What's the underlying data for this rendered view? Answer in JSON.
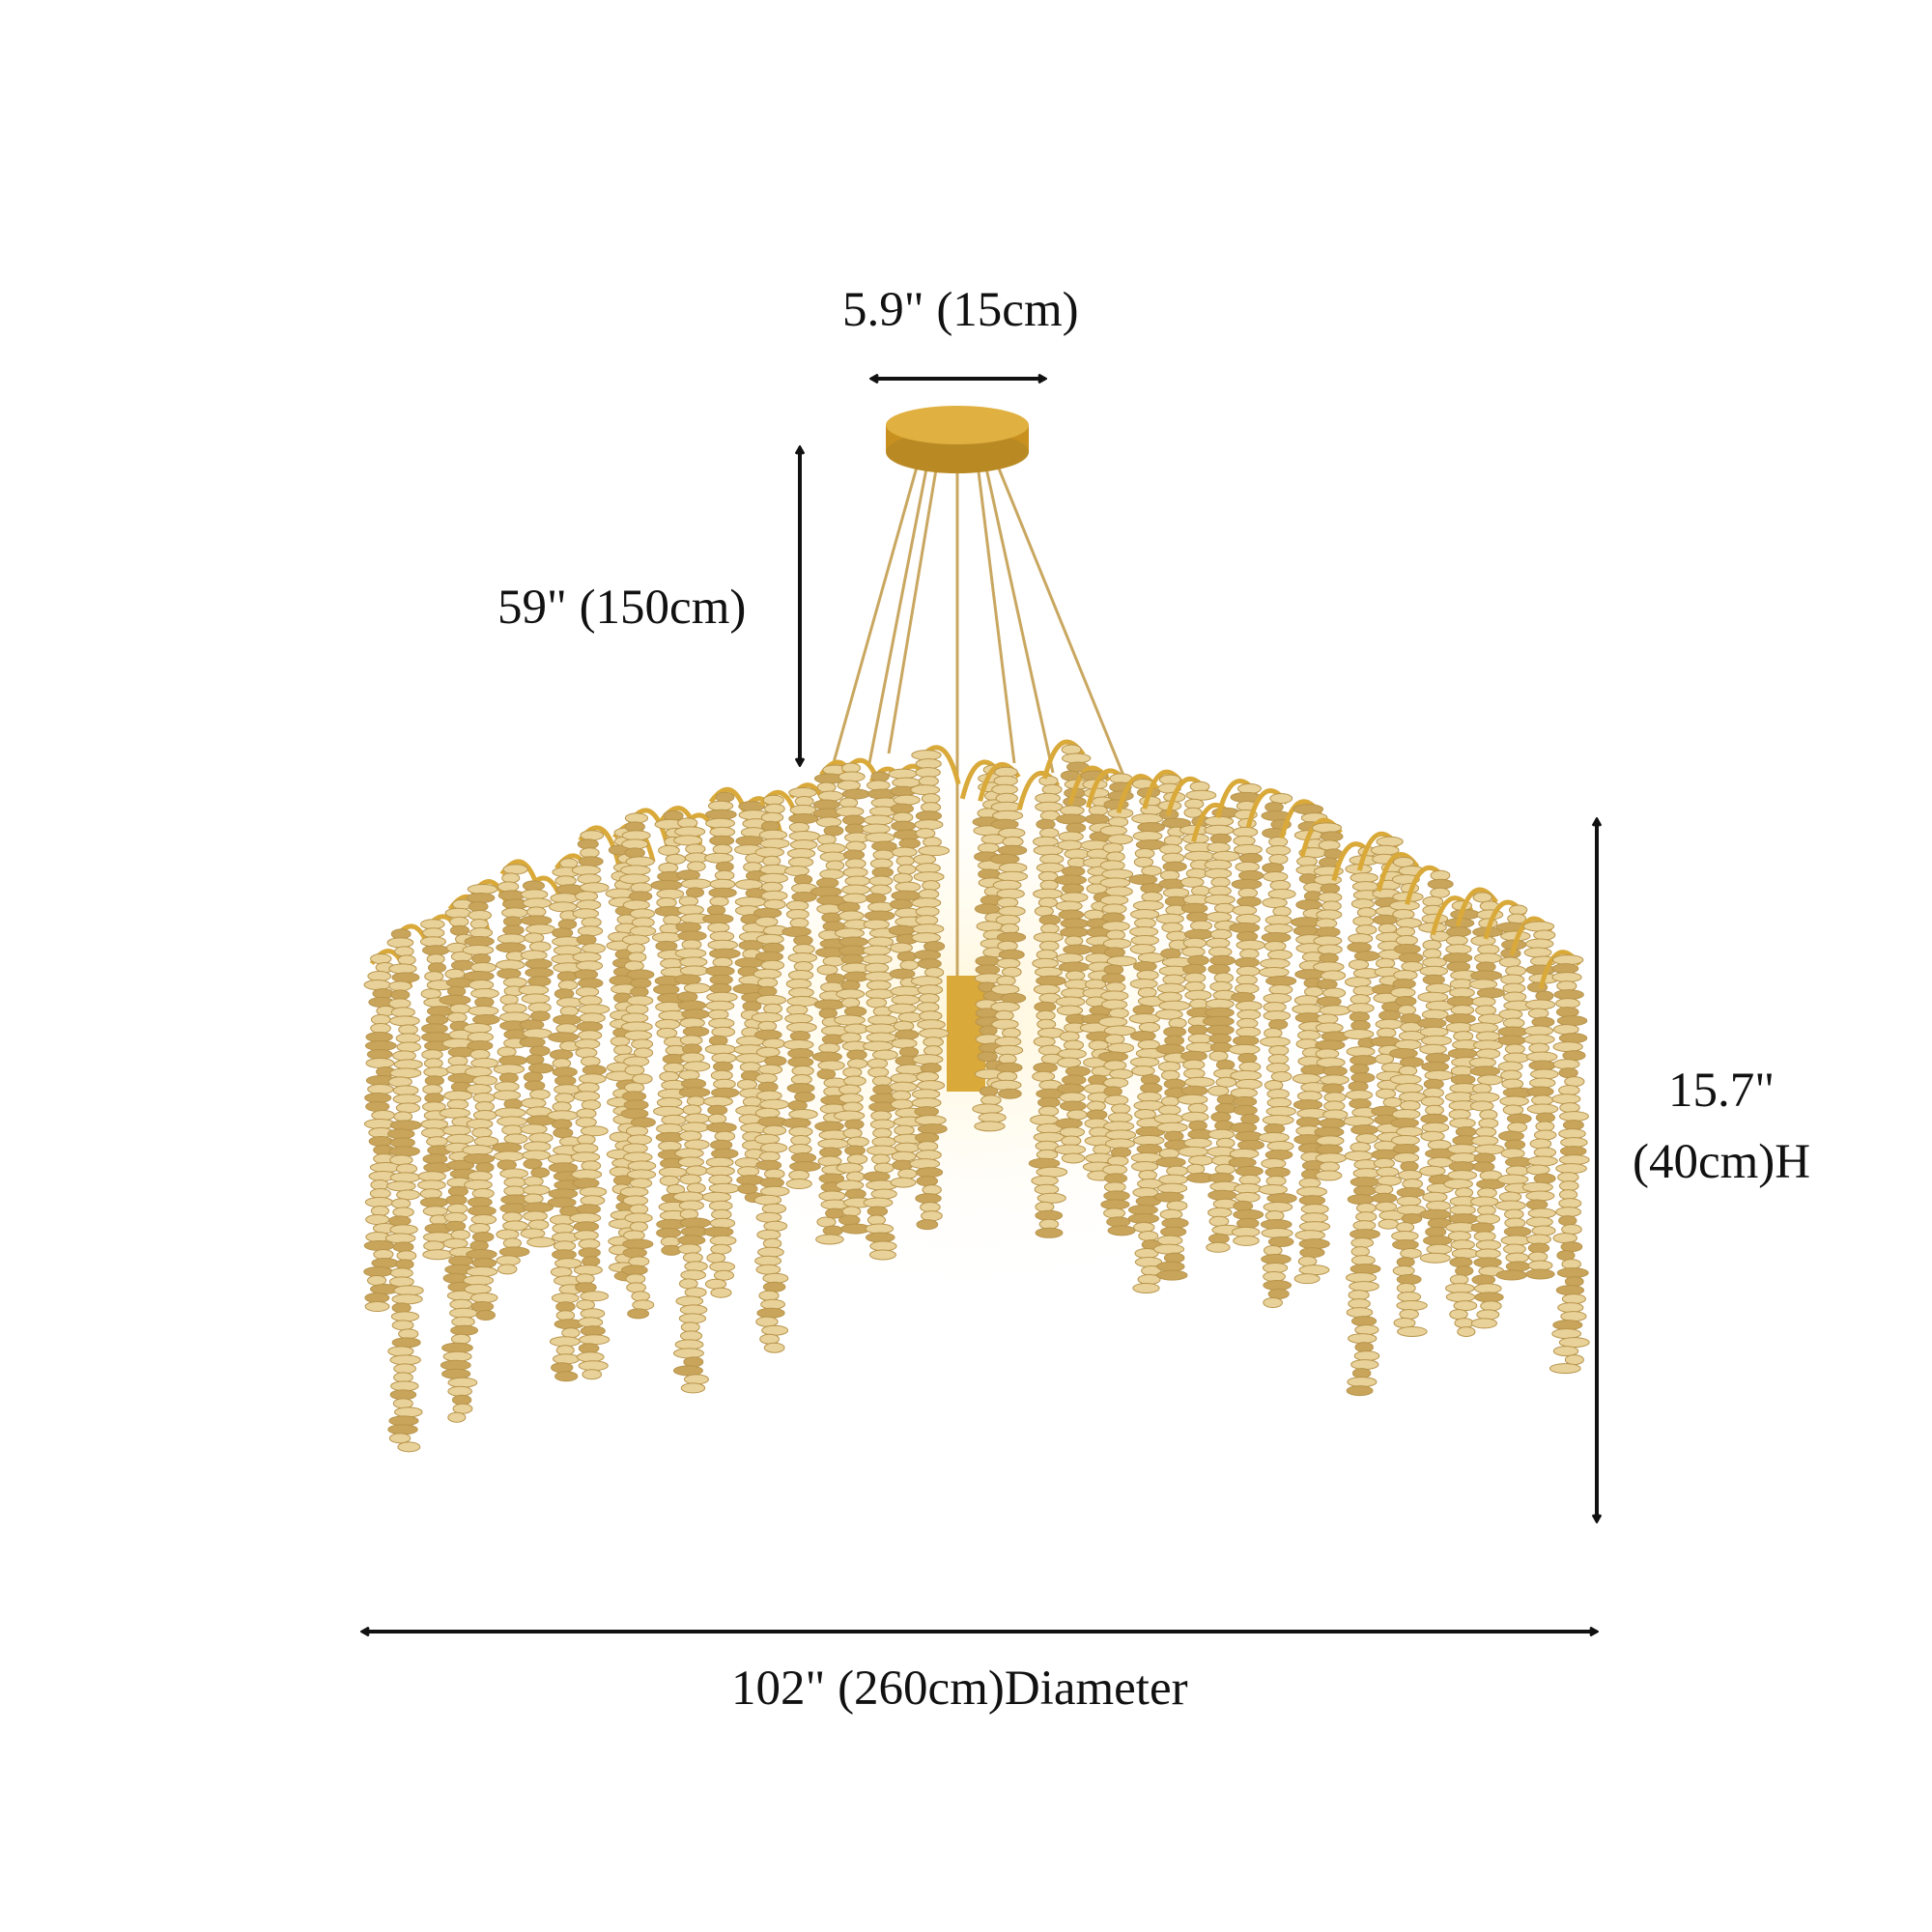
{
  "dimensions": {
    "canopy_width": "5.9\" (15cm)",
    "cord_length": "59\" (150cm)",
    "height_line1": "15.7\"",
    "height_line2": "(40cm)H",
    "diameter": "102\" (260cm)Diameter"
  },
  "colors": {
    "gold": "#d9a93a",
    "crystal": "#e8d29a",
    "arrow": "#111111"
  }
}
